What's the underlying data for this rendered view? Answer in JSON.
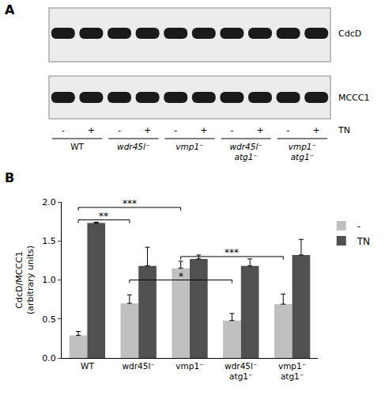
{
  "panel_a": {
    "label": "A",
    "rows": [
      "CdcD",
      "MCCC1"
    ],
    "treatment": "TN",
    "lanes": [
      "-",
      "+",
      "-",
      "+",
      "-",
      "+",
      "-",
      "+",
      "-",
      "+"
    ],
    "groups": [
      "WT",
      "wdr45l⁻",
      "vmp1⁻",
      "wdr45l⁻ atg1⁻",
      "vmp1⁻ atg1⁻"
    ]
  },
  "panel_b_label": "B",
  "chart_data": {
    "type": "bar",
    "y_label": "CdcD/MCCC1\n(arbitrary units)",
    "categories": [
      "WT",
      "wdr45l⁻",
      "vmp1⁻",
      "wdr45l⁻ atg1⁻",
      "vmp1⁻ atg1⁻"
    ],
    "series": [
      {
        "name": "-",
        "color": "#c0c0c0",
        "values": [
          0.29,
          0.7,
          1.15,
          0.48,
          0.69
        ],
        "error": [
          0.05,
          0.11,
          0.09,
          0.09,
          0.13
        ]
      },
      {
        "name": "TN",
        "color": "#505050",
        "values": [
          1.73,
          1.18,
          1.27,
          1.18,
          1.32
        ],
        "error": [
          0.01,
          0.24,
          0.05,
          0.09,
          0.2
        ]
      }
    ],
    "ylim": [
      0,
      2.0
    ],
    "yticks": [
      {
        "value": 0,
        "label": "0.0"
      },
      {
        "value": 0.5,
        "label": "0.5"
      },
      {
        "value": 1,
        "label": "1.0"
      },
      {
        "value": 1.5,
        "label": "1.5"
      },
      {
        "value": 2,
        "label": "2.0"
      }
    ],
    "significance": [
      {
        "from": 0,
        "to": 2,
        "y": 1.93,
        "label": "***"
      },
      {
        "from": 0,
        "to": 1,
        "y": 1.77,
        "label": "**"
      },
      {
        "from": 2,
        "to": 4,
        "y": 1.3,
        "label": "***"
      },
      {
        "from": 1,
        "to": 3,
        "y": 1.0,
        "label": "*"
      }
    ],
    "grid": false,
    "legend": "right"
  }
}
